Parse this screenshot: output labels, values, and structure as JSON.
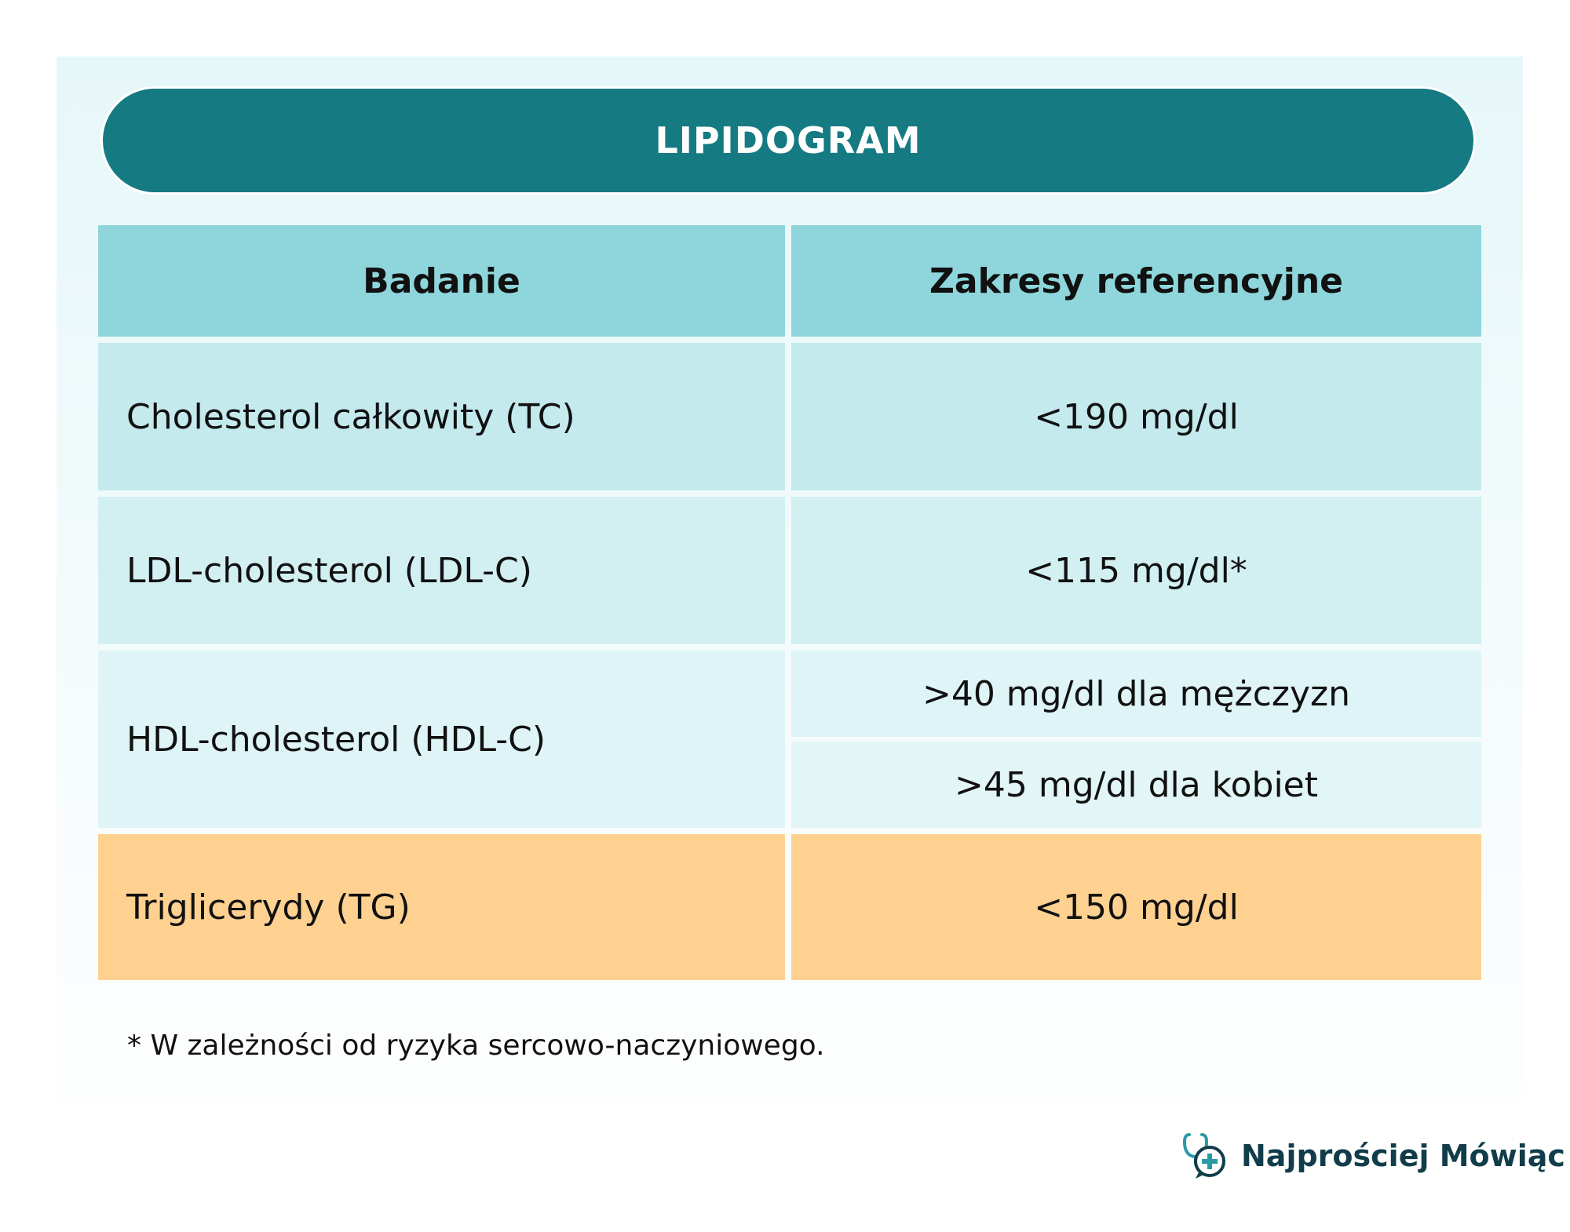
{
  "title": "LIPIDOGRAM",
  "table": {
    "headers": [
      "Badanie",
      "Zakresy referencyjne"
    ],
    "rows": [
      {
        "test": "Cholesterol całkowity (TC)",
        "range": "<190 mg/dl"
      },
      {
        "test": "LDL-cholesterol (LDL-C)",
        "range": "<115 mg/dl*"
      },
      {
        "test": "HDL-cholesterol (HDL-C)",
        "ranges": [
          ">40 mg/dl dla mężczyzn",
          ">45 mg/dl dla kobiet"
        ]
      },
      {
        "test": "Triglicerydy (TG)",
        "range": "<150 mg/dl"
      }
    ]
  },
  "footnote": "* W zależności od ryzyka sercowo-naczyniowego.",
  "brand": {
    "name": "Najprościej Mówiąc",
    "icon": "stethoscope-plus-icon"
  },
  "colors": {
    "title_bg": "#157a82",
    "header_bg": "#8ed6dc",
    "row_tc": "#c4eaee",
    "row_ldl": "#d2f0f2",
    "row_hdl": "#def4f6",
    "row_tg": "#fed190",
    "brand_text": "#113d4a"
  }
}
